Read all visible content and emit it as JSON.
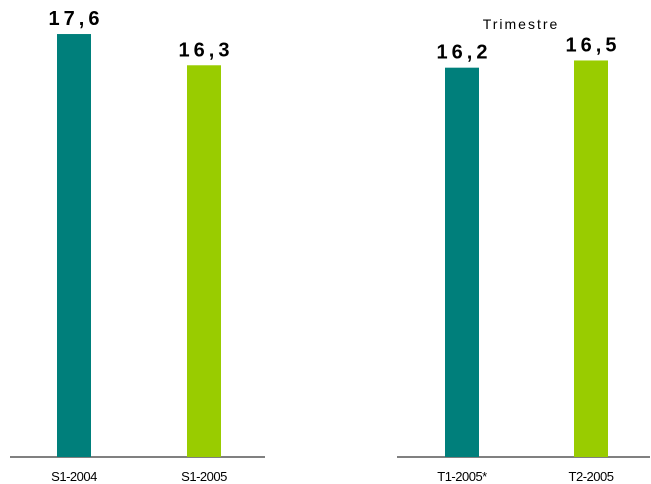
{
  "chart_data": [
    {
      "type": "bar",
      "title": "",
      "xlabel": "",
      "ylabel": "",
      "categories": [
        "S1-2004",
        "S1-2005"
      ],
      "values": [
        17.6,
        16.3
      ],
      "value_labels": [
        "17,6",
        "16,3"
      ],
      "colors": [
        "#007f7b",
        "#99cc00"
      ],
      "ylim": [
        0,
        18.6
      ],
      "grid": false
    },
    {
      "type": "bar",
      "title": "Trimestre",
      "xlabel": "",
      "ylabel": "",
      "categories": [
        "T1-2005*",
        "T2-2005"
      ],
      "values": [
        16.2,
        16.5
      ],
      "value_labels": [
        "16,2",
        "16,5"
      ],
      "colors": [
        "#007f7b",
        "#99cc00"
      ],
      "ylim": [
        0,
        18.6
      ],
      "grid": false
    }
  ]
}
